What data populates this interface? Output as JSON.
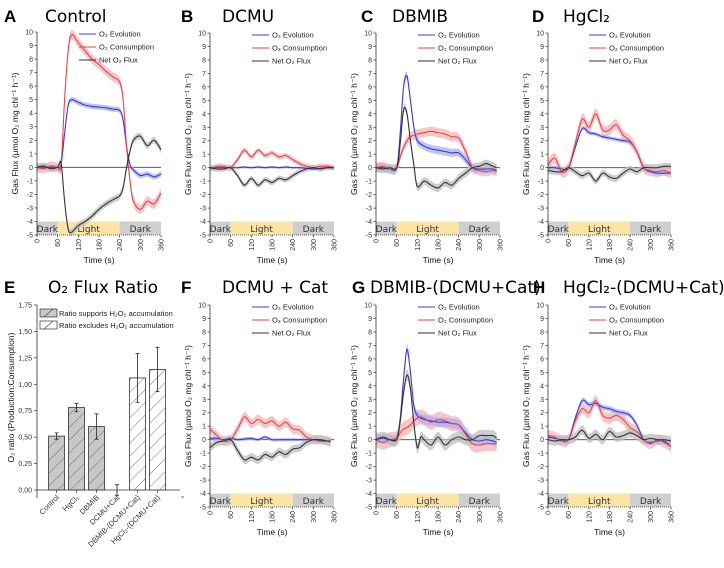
{
  "figure": {
    "colors": {
      "evolution": "#3b3bd6",
      "evolution_band": "#aab0f0",
      "consumption": "#e0474c",
      "consumption_band": "#f5b3b5",
      "net": "#333333",
      "net_band": "#bdbdbd",
      "dark_phase": "#cfcfcf",
      "light_phase": "#fbe4a6",
      "bar_supports": "#c8c8c8",
      "bar_excludes": "#ffffff"
    },
    "legend": {
      "evolution": "O₂ Evolution",
      "consumption": "O₂ Consumption",
      "net": "Net O₂ Flux"
    },
    "phases": [
      {
        "label": "Dark",
        "start": 0,
        "end": 60
      },
      {
        "label": "Light",
        "start": 60,
        "end": 240
      },
      {
        "label": "Dark",
        "start": 240,
        "end": 360
      }
    ]
  },
  "chart_data": [
    {
      "id": "A",
      "letter": "A",
      "title": "Control",
      "type": "line",
      "xlabel": "Time (s)",
      "ylabel": "Gas Flux (µmol O₂ mg chl⁻¹ h⁻¹)",
      "xlim": [
        0,
        360
      ],
      "ylim": [
        -5,
        10
      ],
      "xticks": [
        0,
        60,
        120,
        180,
        240,
        300,
        360
      ],
      "yticks": [
        -5,
        -4,
        -3,
        -2,
        -1,
        0,
        1,
        2,
        3,
        4,
        5,
        6,
        7,
        8,
        9,
        10
      ],
      "x": [
        0,
        20,
        40,
        60,
        70,
        80,
        90,
        100,
        120,
        140,
        160,
        180,
        200,
        220,
        240,
        250,
        260,
        270,
        280,
        300,
        320,
        340,
        360
      ],
      "series": [
        {
          "name": "O₂ Evolution",
          "key": "evolution",
          "values": [
            0,
            0,
            0,
            0,
            0.2,
            2.5,
            4.5,
            5.0,
            4.8,
            4.6,
            4.5,
            4.45,
            4.4,
            4.3,
            4.2,
            3.5,
            1.5,
            0.2,
            -0.2,
            -0.6,
            -0.5,
            -0.7,
            -0.5
          ],
          "err": 0.2
        },
        {
          "name": "O₂ Consumption",
          "key": "consumption",
          "values": [
            0,
            -0.1,
            0.1,
            0,
            0.2,
            5.0,
            8.5,
            9.8,
            9.2,
            8.6,
            8.0,
            7.6,
            7.1,
            6.7,
            6.3,
            5.0,
            1.5,
            -1.0,
            -2.5,
            -3.1,
            -2.5,
            -2.7,
            -1.9
          ],
          "err": 0.35
        },
        {
          "name": "Net O₂ Flux",
          "key": "net",
          "values": [
            0,
            0.1,
            -0.1,
            0,
            0.3,
            -2.5,
            -4.5,
            -4.8,
            -4.3,
            -4.0,
            -3.6,
            -3.1,
            -2.7,
            -2.4,
            -2.1,
            -1.5,
            0,
            1.2,
            2.0,
            2.3,
            1.6,
            2.0,
            1.3
          ],
          "err": 0.25
        }
      ]
    },
    {
      "id": "B",
      "letter": "B",
      "title": "DCMU",
      "type": "line",
      "xlabel": "Time (s)",
      "ylabel": "Gas Flux (µmol O₂ mg chl⁻¹ h⁻¹)",
      "xlim": [
        0,
        360
      ],
      "ylim": [
        -5,
        10
      ],
      "xticks": [
        0,
        60,
        120,
        180,
        240,
        300,
        360
      ],
      "yticks": [
        -5,
        -4,
        -3,
        -2,
        -1,
        0,
        1,
        2,
        3,
        4,
        5,
        6,
        7,
        8,
        9,
        10
      ],
      "x": [
        0,
        20,
        40,
        60,
        80,
        100,
        120,
        140,
        160,
        180,
        200,
        220,
        240,
        260,
        280,
        300,
        320,
        340,
        360
      ],
      "series": [
        {
          "name": "O₂ Evolution",
          "key": "evolution",
          "values": [
            0,
            0,
            0,
            0,
            0,
            0.05,
            0,
            0.05,
            0,
            0.05,
            0,
            0.05,
            0,
            0,
            -0.05,
            -0.1,
            -0.05,
            0,
            0
          ],
          "err": 0.08
        },
        {
          "name": "O₂ Consumption",
          "key": "consumption",
          "values": [
            -0.1,
            0.1,
            0.1,
            0,
            0.6,
            1.3,
            0.8,
            1.3,
            0.9,
            1.1,
            0.8,
            0.9,
            0.6,
            0.3,
            0.1,
            0,
            0.1,
            0.1,
            0
          ],
          "err": 0.2
        },
        {
          "name": "Net O₂ Flux",
          "key": "net",
          "values": [
            0,
            -0.1,
            -0.1,
            0,
            -0.6,
            -1.3,
            -0.8,
            -1.3,
            -0.9,
            -1.1,
            -0.8,
            -0.9,
            -0.6,
            -0.3,
            -0.1,
            0,
            -0.1,
            0,
            0
          ],
          "err": 0.2
        }
      ]
    },
    {
      "id": "C",
      "letter": "C",
      "title": "DBMIB",
      "type": "line",
      "xlabel": "Time (s)",
      "ylabel": "Gas Flux (µmol O₂ mg chl⁻¹ h⁻¹)",
      "xlim": [
        0,
        360
      ],
      "ylim": [
        -5,
        10
      ],
      "xticks": [
        0,
        60,
        120,
        180,
        240,
        300,
        360
      ],
      "yticks": [
        -5,
        -4,
        -3,
        -2,
        -1,
        0,
        1,
        2,
        3,
        4,
        5,
        6,
        7,
        8,
        9,
        10
      ],
      "x": [
        0,
        20,
        40,
        60,
        70,
        80,
        90,
        100,
        110,
        120,
        140,
        160,
        180,
        200,
        220,
        240,
        260,
        280,
        300,
        320,
        340,
        350
      ],
      "series": [
        {
          "name": "O₂ Evolution",
          "key": "evolution",
          "values": [
            0,
            0,
            -0.1,
            0,
            2.5,
            6.0,
            6.8,
            5.0,
            3.0,
            2.0,
            1.6,
            1.4,
            1.3,
            1.2,
            1.1,
            1.1,
            0.6,
            0,
            -0.1,
            -0.1,
            -0.1,
            -0.2
          ],
          "err": 0.3
        },
        {
          "name": "O₂ Consumption",
          "key": "consumption",
          "values": [
            0,
            0.1,
            -0.1,
            0,
            0.8,
            1.5,
            2.0,
            2.3,
            2.4,
            2.5,
            2.6,
            2.7,
            2.6,
            2.5,
            2.3,
            2.2,
            1.2,
            0,
            -0.2,
            -0.3,
            -0.2,
            -0.3
          ],
          "err": 0.35
        },
        {
          "name": "Net O₂ Flux",
          "key": "net",
          "values": [
            0,
            -0.1,
            0,
            0,
            1.7,
            4.3,
            4.0,
            2.0,
            0.2,
            -1.4,
            -1.0,
            -1.3,
            -1.5,
            -1.1,
            -1.3,
            -0.8,
            -0.4,
            0,
            0.1,
            0.3,
            0.1,
            0
          ],
          "err": 0.3
        }
      ]
    },
    {
      "id": "D",
      "letter": "D",
      "title": "HgCl₂",
      "type": "line",
      "xlabel": "Time (s)",
      "ylabel": "Gas Flux (µmol O₂ mg chl⁻¹ h⁻¹)",
      "xlim": [
        0,
        360
      ],
      "ylim": [
        -5,
        10
      ],
      "xticks": [
        0,
        60,
        120,
        180,
        240,
        300,
        360
      ],
      "yticks": [
        -5,
        -4,
        -3,
        -2,
        -1,
        0,
        1,
        2,
        3,
        4,
        5,
        6,
        7,
        8,
        9,
        10
      ],
      "x": [
        0,
        20,
        40,
        60,
        80,
        100,
        120,
        140,
        160,
        180,
        200,
        220,
        240,
        260,
        280,
        300,
        320,
        340,
        360
      ],
      "series": [
        {
          "name": "O₂ Evolution",
          "key": "evolution",
          "values": [
            0,
            0,
            -0.1,
            0,
            1.5,
            2.9,
            2.6,
            2.5,
            2.3,
            2.2,
            2.1,
            2.0,
            1.9,
            1.2,
            0,
            -0.3,
            -0.4,
            -0.4,
            -0.4
          ],
          "err": 0.15
        },
        {
          "name": "O₂ Consumption",
          "key": "consumption",
          "values": [
            0.2,
            0.7,
            -0.3,
            0,
            1.8,
            3.6,
            3.0,
            4.0,
            2.8,
            2.8,
            3.2,
            2.4,
            2.0,
            1.2,
            0,
            -0.2,
            -0.3,
            -0.2,
            -0.4
          ],
          "err": 0.4
        },
        {
          "name": "Net O₂ Flux",
          "key": "net",
          "values": [
            -0.2,
            -0.3,
            -0.3,
            0,
            -0.3,
            -0.6,
            -0.4,
            -1.0,
            -0.4,
            -0.7,
            -0.8,
            -0.4,
            -0.1,
            -0.3,
            0,
            0,
            0,
            0.1,
            0.1
          ],
          "err": 0.25
        }
      ]
    },
    {
      "id": "E",
      "letter": "E",
      "title": "O₂ Flux Ratio",
      "type": "bar",
      "xlabel": "",
      "ylabel": "O₂ ratio (Production:Consumption)",
      "ylim": [
        0,
        1.75
      ],
      "yticks": [
        "0,00",
        "0,25",
        "0,50",
        "0,75",
        "1,00",
        "1,25",
        "1,50",
        "1,75"
      ],
      "categories": [
        "Control",
        "HgCl₂",
        "DBMIB",
        "DCMU+Cat",
        "DBMIB-(DCMU+Cat)",
        "HgCl₂-(DCMU+Cat)"
      ],
      "values": [
        0.51,
        0.78,
        0.6,
        0.0,
        1.06,
        1.14
      ],
      "errors": [
        0.03,
        0.04,
        0.12,
        0.05,
        0.23,
        0.21
      ],
      "groups": [
        "supports",
        "supports",
        "supports",
        "supports",
        "excludes",
        "excludes"
      ],
      "legend": [
        {
          "key": "supports",
          "label": "Ratio supports H₂O₂ accumulation"
        },
        {
          "key": "excludes",
          "label": "Ratio excludes H₂O₂ accumulation"
        }
      ]
    },
    {
      "id": "F",
      "letter": "F",
      "title": "DCMU + Cat",
      "type": "line",
      "xlabel": "Time (s)",
      "ylabel": "Gas Flux (µmol O₂ mg chl⁻¹ h⁻¹)",
      "xlim": [
        0,
        360
      ],
      "ylim": [
        -5,
        10
      ],
      "xticks": [
        0,
        60,
        120,
        180,
        240,
        300,
        360
      ],
      "yticks": [
        -5,
        -4,
        -3,
        -2,
        -1,
        0,
        1,
        2,
        3,
        4,
        5,
        6,
        7,
        8,
        9,
        10
      ],
      "x": [
        0,
        20,
        40,
        60,
        80,
        100,
        120,
        140,
        160,
        180,
        200,
        220,
        240,
        260,
        280,
        300,
        320,
        340,
        350
      ],
      "series": [
        {
          "name": "O₂ Evolution",
          "key": "evolution",
          "values": [
            0.1,
            0.1,
            0,
            0.1,
            0,
            0.05,
            0.1,
            0,
            0.2,
            0,
            0,
            0,
            0,
            0,
            0,
            0,
            -0.1,
            -0.1,
            -0.1
          ],
          "err": 0.12
        },
        {
          "name": "O₂ Consumption",
          "key": "consumption",
          "values": [
            0.8,
            0.3,
            -0.1,
            0,
            0.8,
            1.7,
            1.2,
            1.5,
            1.2,
            1.4,
            1.0,
            1.3,
            0.8,
            0.7,
            0.2,
            0,
            0,
            -0.1,
            -0.2
          ],
          "err": 0.35
        },
        {
          "name": "Net O₂ Flux",
          "key": "net",
          "values": [
            -0.6,
            -0.2,
            -0.1,
            0,
            -0.8,
            -1.5,
            -1.3,
            -1.5,
            -1.1,
            -1.3,
            -0.9,
            -1.1,
            -0.7,
            -0.6,
            -0.2,
            0,
            0,
            -0.1,
            -0.1
          ],
          "err": 0.3
        }
      ]
    },
    {
      "id": "G",
      "letter": "G",
      "title": "DBMIB-(DCMU+Cat)",
      "type": "line",
      "xlabel": "Time (s)",
      "ylabel": "Gas Flux (µmol O₂ mg chl⁻¹ h⁻¹)",
      "xlim": [
        0,
        360
      ],
      "ylim": [
        -5,
        10
      ],
      "xticks": [
        0,
        60,
        120,
        180,
        240,
        300,
        360
      ],
      "yticks": [
        -5,
        -4,
        -3,
        -2,
        -1,
        0,
        1,
        2,
        3,
        4,
        5,
        6,
        7,
        8,
        9,
        10
      ],
      "x": [
        0,
        20,
        40,
        60,
        70,
        80,
        90,
        100,
        110,
        120,
        130,
        140,
        160,
        180,
        200,
        220,
        240,
        260,
        280,
        300,
        320,
        340,
        350
      ],
      "series": [
        {
          "name": "O₂ Evolution",
          "key": "evolution",
          "values": [
            0,
            0.1,
            0,
            0.1,
            1.5,
            4.5,
            6.7,
            5.0,
            2.5,
            1.8,
            1.6,
            1.5,
            1.4,
            1.3,
            1.3,
            1.2,
            1.1,
            0.5,
            0,
            -0.1,
            0,
            -0.1,
            -0.2
          ],
          "err": 0.35
        },
        {
          "name": "O₂ Consumption",
          "key": "consumption",
          "values": [
            0,
            -0.2,
            0,
            0.1,
            0.5,
            0.8,
            0.9,
            1.1,
            1.4,
            1.6,
            1.7,
            1.6,
            1.3,
            1.5,
            1.4,
            1.2,
            1.1,
            0.4,
            -0.3,
            -0.4,
            -0.3,
            -0.3,
            -0.3
          ],
          "err": 0.55
        },
        {
          "name": "Net O₂ Flux",
          "key": "net",
          "values": [
            0,
            0.2,
            0,
            0,
            1.3,
            3.5,
            4.8,
            3.8,
            1.2,
            -0.6,
            0.2,
            0,
            -0.4,
            0.2,
            -0.4,
            0,
            0.2,
            0,
            0,
            0.3,
            0.3,
            0.3,
            0.1
          ],
          "err": 0.4
        }
      ]
    },
    {
      "id": "H",
      "letter": "H",
      "title": "HgCl₂-(DCMU+Cat)",
      "type": "line",
      "xlabel": "Time (s)",
      "ylabel": "Gas Flux (µmol O₂ mg chl⁻¹ h⁻¹)",
      "xlim": [
        0,
        360
      ],
      "ylim": [
        -5,
        10
      ],
      "xticks": [
        0,
        60,
        120,
        180,
        240,
        300,
        360
      ],
      "yticks": [
        -5,
        -4,
        -3,
        -2,
        -1,
        0,
        1,
        2,
        3,
        4,
        5,
        6,
        7,
        8,
        9,
        10
      ],
      "x": [
        0,
        20,
        40,
        60,
        80,
        100,
        120,
        140,
        160,
        180,
        200,
        220,
        240,
        260,
        280,
        300,
        320,
        340,
        360
      ],
      "series": [
        {
          "name": "O₂ Evolution",
          "key": "evolution",
          "values": [
            0.2,
            0.1,
            0,
            0,
            1.6,
            2.9,
            2.6,
            2.7,
            2.4,
            2.3,
            2.1,
            2.0,
            1.8,
            1.1,
            0,
            -0.2,
            -0.1,
            -0.1,
            -0.5
          ],
          "err": 0.2
        },
        {
          "name": "O₂ Consumption",
          "key": "consumption",
          "values": [
            0.3,
            0.2,
            -0.1,
            0,
            1.4,
            2.3,
            2.0,
            2.9,
            1.8,
            1.6,
            1.8,
            1.5,
            0.9,
            0.6,
            0,
            -0.3,
            0,
            -0.2,
            -0.5
          ],
          "err": 0.4
        },
        {
          "name": "Net O₂ Flux",
          "key": "net",
          "values": [
            0,
            -0.1,
            0,
            0,
            0.2,
            0.7,
            0.1,
            0.4,
            0,
            0.6,
            0.2,
            0.3,
            0.5,
            0.3,
            0,
            0.1,
            0,
            0,
            -0.1
          ],
          "err": 0.35
        }
      ]
    }
  ]
}
